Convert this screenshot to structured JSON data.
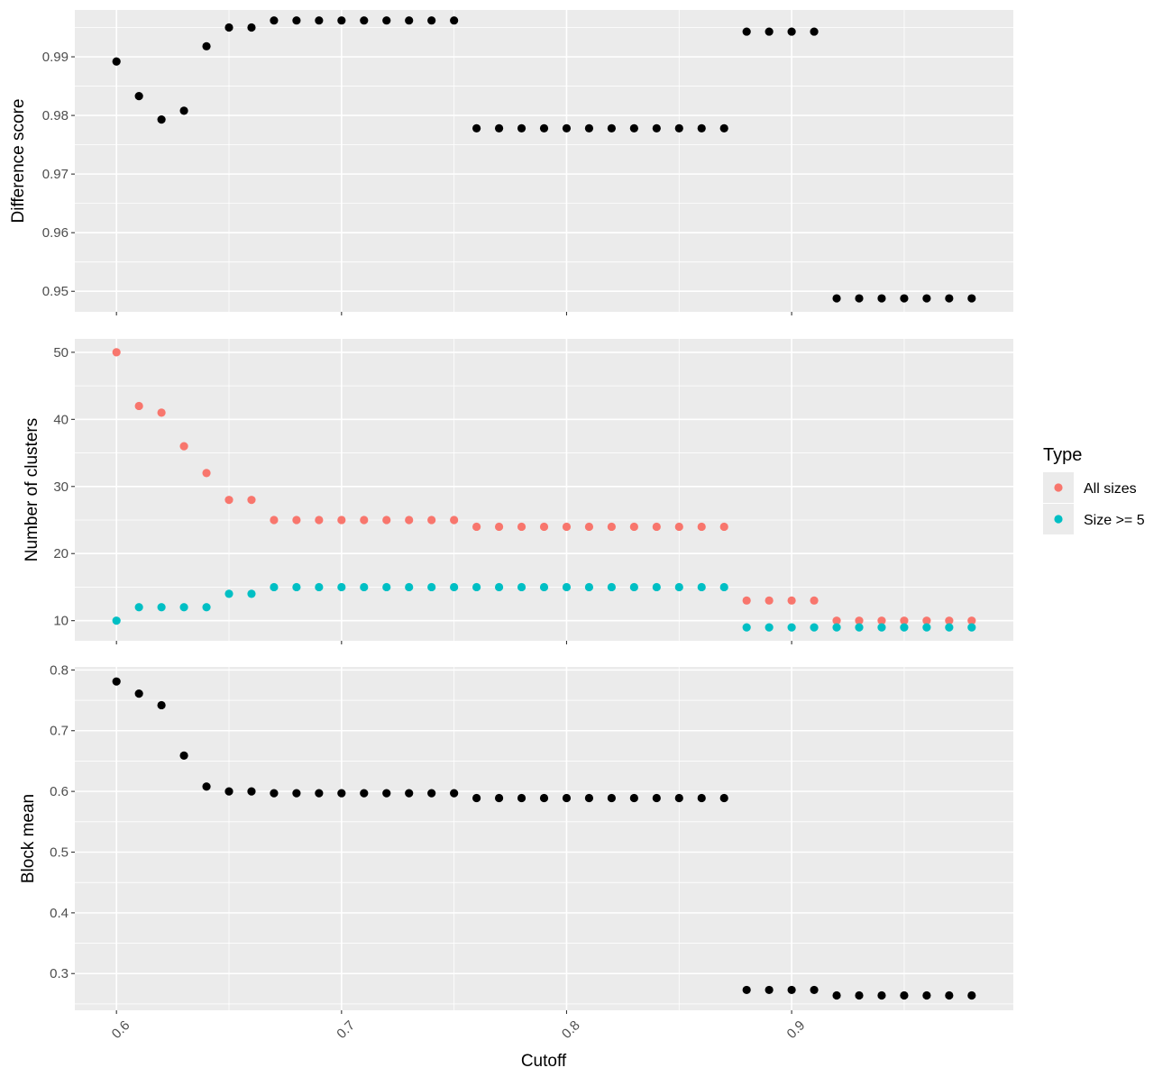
{
  "chart_data": {
    "type": "scatter",
    "xlabel": "Cutoff",
    "x_ticks": [
      "0.6",
      "0.7",
      "0.8",
      "0.9"
    ],
    "xlim": [
      0.5815,
      0.9985
    ],
    "x": [
      0.6,
      0.61,
      0.62,
      0.63,
      0.64,
      0.65,
      0.66,
      0.67,
      0.68,
      0.69,
      0.7,
      0.71,
      0.72,
      0.73,
      0.74,
      0.75,
      0.76,
      0.77,
      0.78,
      0.79,
      0.8,
      0.81,
      0.82,
      0.83,
      0.84,
      0.85,
      0.86,
      0.87,
      0.88,
      0.89,
      0.9,
      0.91,
      0.92,
      0.93,
      0.94,
      0.95,
      0.96,
      0.97,
      0.98
    ],
    "grid": true,
    "legend_position": "right",
    "colors": {
      "panel_bg": "#EBEBEB",
      "grid": "#FFFFFF",
      "point_default": "#000000"
    },
    "panels": [
      {
        "ylabel": "Difference score",
        "ylim": [
          0.9465,
          0.998
        ],
        "y_ticks": [
          "0.99",
          "0.98",
          "0.97",
          "0.96",
          "0.95"
        ],
        "series": [
          {
            "color": "#000000",
            "values": [
              0.9892,
              0.9833,
              0.9793,
              0.9808,
              0.9918,
              0.995,
              0.995,
              0.9962,
              0.9962,
              0.9962,
              0.9962,
              0.9962,
              0.9962,
              0.9962,
              0.9962,
              0.9962,
              0.9778,
              0.9778,
              0.9778,
              0.9778,
              0.9778,
              0.9778,
              0.9778,
              0.9778,
              0.9778,
              0.9778,
              0.9778,
              0.9778,
              0.9943,
              0.9943,
              0.9943,
              0.9943,
              0.9488,
              0.9488,
              0.9488,
              0.9488,
              0.9488,
              0.9488,
              0.9488
            ]
          }
        ]
      },
      {
        "ylabel": "Number of clusters",
        "ylim": [
          7,
          52
        ],
        "y_ticks": [
          "50",
          "40",
          "30",
          "20",
          "10"
        ],
        "series": [
          {
            "name": "All sizes",
            "color": "#F8766D",
            "values": [
              50,
              42,
              41,
              36,
              32,
              28,
              28,
              25,
              25,
              25,
              25,
              25,
              25,
              25,
              25,
              25,
              24,
              24,
              24,
              24,
              24,
              24,
              24,
              24,
              24,
              24,
              24,
              24,
              13,
              13,
              13,
              13,
              10,
              10,
              10,
              10,
              10,
              10,
              10
            ]
          },
          {
            "name": "Size >= 5",
            "color": "#00BFC4",
            "values": [
              10,
              12,
              12,
              12,
              12,
              14,
              14,
              15,
              15,
              15,
              15,
              15,
              15,
              15,
              15,
              15,
              15,
              15,
              15,
              15,
              15,
              15,
              15,
              15,
              15,
              15,
              15,
              15,
              9,
              9,
              9,
              9,
              9,
              9,
              9,
              9,
              9,
              9,
              9
            ]
          }
        ]
      },
      {
        "ylabel": "Block mean",
        "ylim": [
          0.2395,
          0.805
        ],
        "y_ticks": [
          "0.8",
          "0.7",
          "0.6",
          "0.5",
          "0.4",
          "0.3"
        ],
        "series": [
          {
            "color": "#000000",
            "values": [
              0.781,
              0.761,
              0.742,
              0.659,
              0.608,
              0.6,
              0.6,
              0.597,
              0.597,
              0.597,
              0.597,
              0.597,
              0.597,
              0.597,
              0.597,
              0.597,
              0.589,
              0.589,
              0.589,
              0.589,
              0.589,
              0.589,
              0.589,
              0.589,
              0.589,
              0.589,
              0.589,
              0.589,
              0.273,
              0.273,
              0.273,
              0.273,
              0.264,
              0.264,
              0.264,
              0.264,
              0.264,
              0.264,
              0.264
            ]
          }
        ]
      }
    ],
    "legend": {
      "title": "Type",
      "items": [
        {
          "label": "All sizes",
          "color": "#F8766D"
        },
        {
          "label": "Size >= 5",
          "color": "#00BFC4"
        }
      ]
    }
  }
}
